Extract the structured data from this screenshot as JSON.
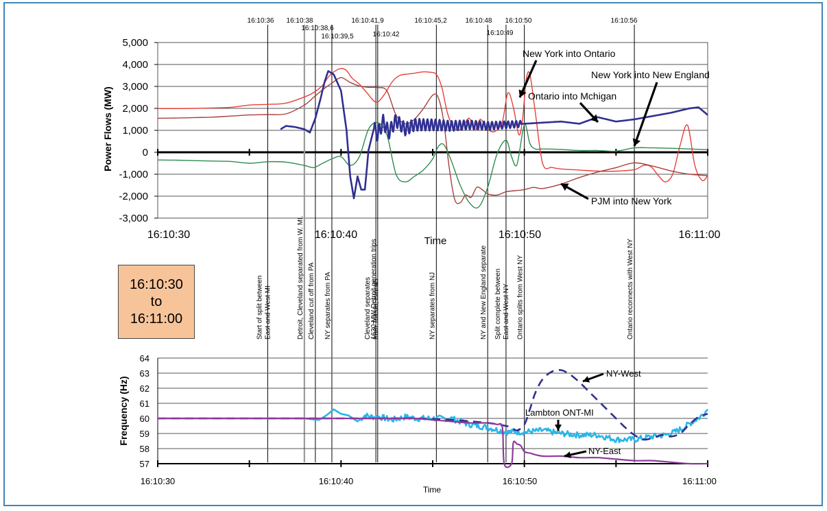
{
  "chart_data": [
    {
      "type": "line",
      "ylabel": "Power Flows (MW)",
      "xlabel": "Time",
      "xlim": [
        "16:10:30",
        "16:11:00"
      ],
      "ylim": [
        -3000,
        5000
      ],
      "y_ticks": [
        "5,000",
        "4,000",
        "3,000",
        "2,000",
        "1,000",
        "0",
        "-1,000",
        "-2,000",
        "-3,000"
      ],
      "x_ticks": [
        "16:10:30",
        "16:10:40",
        "16:10:50",
        "16:11:00"
      ],
      "grid": true,
      "event_times": [
        "16:10:36",
        "16:10:38",
        "16:10:38,6",
        "16:10:39,5",
        "16:10:41,9",
        "16:10:42",
        "16:10:45,2",
        "16:10:48",
        "16:10:49",
        "16:10:50",
        "16:10:56"
      ],
      "event_labels": [
        "Start of split between East and West MI",
        "Detroit, Cleveland separated from W. MI.",
        "Cleveland cut off from PA",
        "NY  separates from PA",
        "Cleveland separates from Toledo, islands",
        "1630 MW Detroit generation trips",
        "NY separates from NJ",
        "NY and New England separate",
        "Split complete between East and West NY",
        "Ontario splits from West NY",
        "Ontario reconnects with West NY"
      ],
      "annotations": [
        "New York into Ontario",
        "New York into New England",
        "Ontario into Mchigan",
        "PJM into New York"
      ],
      "series": [
        {
          "name": "New York into Ontario",
          "color": "#e8403a",
          "x": [
            30,
            31,
            32,
            33,
            34,
            35,
            36,
            37,
            38,
            38.5,
            39,
            39.3,
            39.6,
            40,
            40.3,
            40.6,
            41,
            41.4,
            41.9,
            42.3,
            42.8,
            43.2,
            43.6,
            44,
            44.4,
            44.8,
            45.2,
            45.5,
            45.8,
            46.1,
            46.4,
            46.7,
            47,
            47.3,
            47.6,
            48,
            48.4,
            48.8,
            49.1,
            49.4,
            49.7,
            49.9,
            50.1,
            50.3,
            50.6,
            51,
            51.5,
            52,
            53,
            54,
            55,
            56,
            56.5,
            56.9,
            57.3,
            57.7,
            58.1,
            58.5,
            58.9,
            59.3,
            59.7,
            60
          ],
          "y": [
            1990,
            1990,
            2000,
            2020,
            2050,
            2150,
            2180,
            2240,
            2520,
            2720,
            3050,
            3420,
            3660,
            3820,
            3720,
            3380,
            3100,
            2720,
            2280,
            2560,
            3220,
            3500,
            3560,
            3600,
            3660,
            3650,
            3550,
            2950,
            1800,
            1200,
            1000,
            1250,
            1550,
            1000,
            1500,
            1050,
            950,
            1400,
            2700,
            2050,
            800,
            1500,
            3300,
            3550,
            1800,
            -520,
            -690,
            -760,
            -810,
            -860,
            -860,
            -790,
            -600,
            -650,
            -1050,
            -1350,
            -980,
            330,
            1230,
            -600,
            -1280,
            -1050
          ]
        },
        {
          "name": "PJM into New York",
          "color": "#a5403a",
          "x": [
            30,
            31,
            32,
            33,
            34,
            35,
            36,
            37,
            38,
            38.5,
            39,
            39.5,
            40,
            40.5,
            41,
            41.5,
            42,
            42.5,
            43,
            43.5,
            44,
            44.5,
            45,
            45.3,
            45.6,
            45.9,
            46.2,
            46.5,
            46.8,
            47.1,
            47.4,
            47.7,
            48,
            48.5,
            49,
            49.5,
            50,
            50.5,
            51,
            52,
            53,
            54,
            55,
            56,
            57,
            58,
            59,
            60
          ],
          "y": [
            1550,
            1560,
            1580,
            1600,
            1650,
            1700,
            1720,
            1750,
            2150,
            2500,
            2850,
            3150,
            3400,
            3180,
            3020,
            2960,
            2950,
            2800,
            1700,
            1300,
            1500,
            2000,
            2600,
            2500,
            1400,
            -700,
            -2150,
            -2300,
            -1950,
            -2050,
            -1600,
            -1700,
            -1900,
            -1950,
            -1800,
            -1750,
            -1700,
            -1600,
            -1650,
            -1450,
            -1150,
            -900,
            -700,
            -480,
            -630,
            -850,
            -1000,
            -1060
          ]
        },
        {
          "name": "Ontario into Mchigan",
          "color": "#2e8b4f",
          "x": [
            30,
            31,
            32,
            33,
            34,
            35,
            36,
            37,
            38,
            38.5,
            39,
            39.5,
            40,
            40.5,
            41,
            41.5,
            42,
            42.5,
            43,
            43.5,
            44,
            44.5,
            45,
            45.3,
            45.6,
            46,
            46.5,
            47,
            47.5,
            48,
            48.5,
            49,
            49.3,
            49.6,
            50,
            50.3,
            50.6,
            51,
            52,
            53,
            54,
            55,
            56,
            57,
            58,
            59,
            60
          ],
          "y": [
            -350,
            -360,
            -380,
            -400,
            -420,
            -500,
            -430,
            -450,
            -600,
            -700,
            -500,
            -300,
            -200,
            -600,
            -200,
            1050,
            1350,
            800,
            -1000,
            -1350,
            -1100,
            -800,
            -300,
            250,
            350,
            -350,
            -1500,
            -2300,
            -2500,
            -1600,
            -100,
            550,
            -200,
            -550,
            1250,
            400,
            150,
            150,
            130,
            80,
            80,
            50,
            200,
            200,
            180,
            150,
            120
          ]
        },
        {
          "name": "New York into New England",
          "color": "#2f2f92",
          "width": 2.6,
          "x": [
            36.7,
            37,
            37.5,
            38,
            38.3,
            38.6,
            38.9,
            39.1,
            39.3,
            39.6,
            40,
            40.3,
            40.5,
            40.7,
            40.9,
            41.1,
            41.3,
            41.5,
            41.8,
            42,
            42.3,
            42.6,
            43,
            43.5,
            44,
            45,
            46,
            47,
            48,
            49,
            50,
            51,
            52,
            53,
            54,
            55,
            56,
            57,
            58,
            59,
            59.5,
            60
          ],
          "y": [
            1050,
            1200,
            1150,
            1050,
            900,
            1550,
            2500,
            3200,
            3700,
            3550,
            2800,
            1000,
            -1100,
            -2100,
            -1100,
            -1700,
            -1700,
            100,
            1100,
            800,
            1400,
            900,
            1450,
            1050,
            1250,
            1250,
            1200,
            1250,
            1200,
            1250,
            1300,
            1350,
            1400,
            1300,
            1600,
            1400,
            1500,
            1650,
            1800,
            2000,
            2050,
            1700
          ],
          "oscillation": {
            "from": 41.8,
            "to": 49.8,
            "amplitude": 330,
            "period": 0.22
          }
        }
      ]
    },
    {
      "type": "line",
      "ylabel": "Frequency (Hz)",
      "xlabel": "Time",
      "xlim": [
        "16:10:30",
        "16:11:00"
      ],
      "ylim": [
        57,
        64
      ],
      "y_ticks": [
        "64",
        "63",
        "62",
        "61",
        "60",
        "59",
        "58",
        "57"
      ],
      "x_ticks": [
        "16:10:30",
        "16:10:40",
        "16:10:50",
        "16:11:00"
      ],
      "grid": true,
      "annotations": [
        "NY-West",
        "Lambton  ONT-MI",
        "NY-East"
      ],
      "series": [
        {
          "name": "Lambton  ONT-MI",
          "color": "#29b6e8",
          "width": 2.6,
          "x": [
            30,
            33,
            36,
            38,
            38.8,
            39.2,
            39.6,
            40,
            40.4,
            40.9,
            41.3,
            41.7,
            42.1,
            42.8,
            43.5,
            44.2,
            45,
            46,
            47,
            48,
            49,
            49.5,
            50,
            51,
            52,
            53,
            54,
            55,
            56,
            57,
            57.7,
            58.2,
            58.7,
            59.2,
            59.6,
            60
          ],
          "y": [
            60.0,
            60.0,
            60.0,
            60.0,
            59.9,
            60.2,
            60.6,
            60.3,
            60.2,
            59.8,
            60.2,
            60.1,
            60.1,
            59.9,
            60.1,
            60.0,
            60.0,
            60.0,
            59.6,
            59.4,
            59.1,
            59.1,
            59.1,
            59.2,
            59.0,
            58.9,
            58.9,
            58.6,
            58.6,
            58.8,
            58.9,
            59.1,
            59.4,
            59.8,
            60.1,
            60.6
          ],
          "noise": 0.2
        },
        {
          "name": "NY-West",
          "color": "#2f2f92",
          "dash": "12 8",
          "width": 2.6,
          "x": [
            30,
            35,
            38,
            40,
            42,
            44,
            46,
            48,
            49,
            49.3,
            49.6,
            50,
            50.3,
            50.6,
            51,
            51.5,
            52,
            52.5,
            53,
            53.5,
            54,
            54.5,
            55,
            55.5,
            56,
            56.5,
            57,
            57.5,
            58,
            58.5,
            59,
            59.5,
            60
          ],
          "y": [
            60.0,
            60.0,
            60.0,
            60.0,
            60.0,
            60.0,
            59.9,
            59.7,
            59.5,
            59.4,
            59.2,
            59.6,
            60.6,
            61.7,
            62.6,
            63.1,
            63.2,
            62.9,
            62.4,
            61.8,
            61.2,
            60.6,
            60.0,
            59.4,
            58.9,
            58.6,
            58.7,
            58.9,
            58.8,
            59.0,
            59.6,
            60.1,
            60.3
          ]
        },
        {
          "name": "NY-East",
          "color": "#8e3a9c",
          "width": 2.2,
          "x": [
            30,
            35,
            38,
            40,
            42,
            44,
            45,
            46,
            47,
            48,
            48.5,
            48.8,
            48.9,
            49.3,
            49.4,
            49.6,
            49.8,
            50,
            50.3,
            51,
            52,
            53,
            54,
            55,
            56,
            57,
            58,
            59,
            60
          ],
          "y": [
            60.0,
            60.0,
            60.0,
            60.0,
            60.0,
            60.0,
            59.9,
            59.8,
            59.7,
            59.7,
            59.6,
            59.4,
            57.0,
            57.0,
            58.4,
            58.3,
            58.2,
            57.8,
            57.7,
            57.5,
            57.5,
            57.4,
            57.4,
            57.3,
            57.2,
            57.2,
            57.1,
            57.0,
            57.0
          ]
        }
      ]
    }
  ],
  "time_box": {
    "line1": "16:10:30",
    "line2": "to",
    "line3": "16:11:00"
  }
}
